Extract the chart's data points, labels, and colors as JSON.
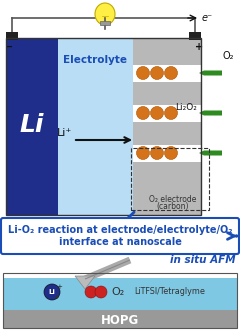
{
  "fig_width": 2.4,
  "fig_height": 3.3,
  "dpi": 100,
  "bg_color": "#ffffff",
  "li_color": "#1e2e8a",
  "electrolyte_color": "#b8ddf5",
  "carbon_color": "#b8b8b8",
  "orange_color": "#d4731a",
  "green_color": "#2e8b20",
  "blue_text_color": "#1a4db5",
  "hopg_color": "#999999",
  "afm_liquid_color": "#7ec8e3",
  "title_text1": "Li-O₂ reaction at electrode/electrolyte/O₂",
  "title_text2": "interface at nanoscale",
  "in_situ_text": "in situ AFM",
  "hopg_text": "HOPG",
  "litfsi_text": "LiTFSI/Tetraglyme",
  "electrolyte_label": "Electrolyte",
  "li_label": "Li",
  "o2_label": "O₂",
  "li2o2_label": "Li₂O₂",
  "o2_electrode_label": "O₂ electrode",
  "carbon_label": "(carbon)",
  "e_minus_label": "e⁻"
}
